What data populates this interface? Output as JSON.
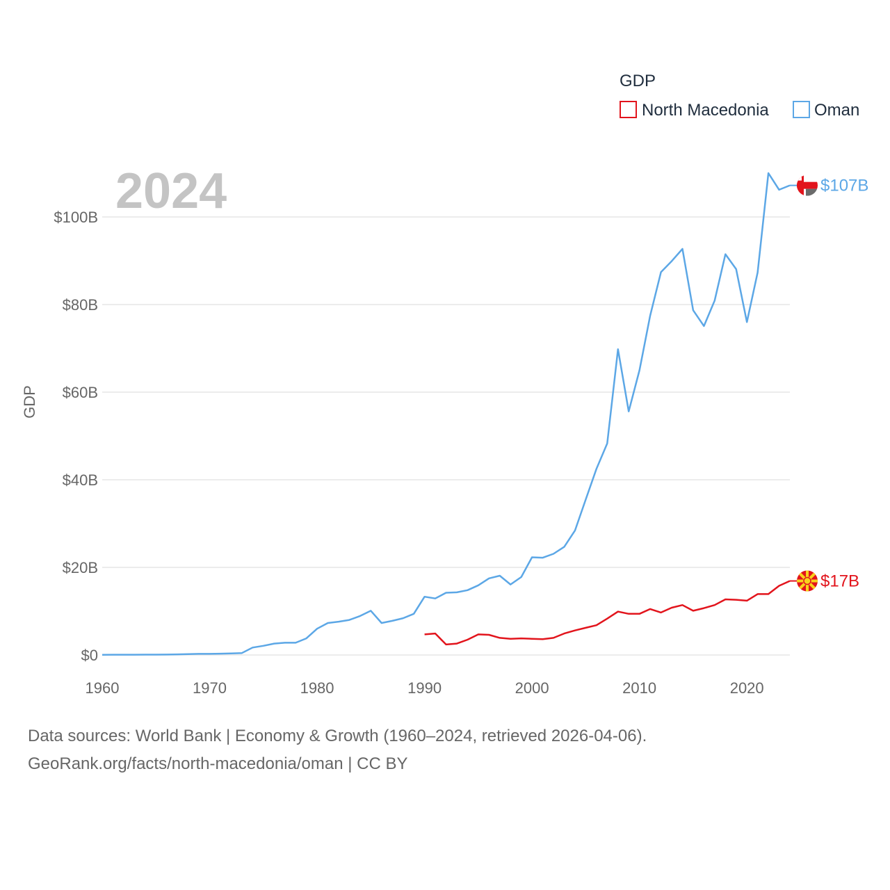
{
  "chart_data": {
    "type": "line",
    "title": "",
    "year_label": "2024",
    "ylabel": "GDP",
    "xlabel": "",
    "xlim": [
      1960,
      2024
    ],
    "ylim": [
      0,
      110
    ],
    "y_unit": "billions USD",
    "x_ticks": [
      1960,
      1970,
      1980,
      1990,
      2000,
      2010,
      2020
    ],
    "x_tick_labels": [
      "1960",
      "1970",
      "1980",
      "1990",
      "2000",
      "2010",
      "2020"
    ],
    "y_ticks": [
      0,
      20,
      40,
      60,
      80,
      100
    ],
    "y_tick_labels": [
      "$0",
      "$20B",
      "$40B",
      "$60B",
      "$80B",
      "$100B"
    ],
    "grid": true,
    "legend": {
      "title": "GDP",
      "position": "top-right",
      "entries": [
        "North Macedonia",
        "Oman"
      ]
    },
    "series": [
      {
        "name": "Oman",
        "color": "#5ca7e6",
        "end_label": "$107B",
        "flag": "oman-flag-icon",
        "points": [
          [
            1960,
            0.05
          ],
          [
            1961,
            0.06
          ],
          [
            1962,
            0.07
          ],
          [
            1963,
            0.07
          ],
          [
            1964,
            0.08
          ],
          [
            1965,
            0.08
          ],
          [
            1966,
            0.09
          ],
          [
            1967,
            0.15
          ],
          [
            1968,
            0.2
          ],
          [
            1969,
            0.25
          ],
          [
            1970,
            0.26
          ],
          [
            1971,
            0.3
          ],
          [
            1972,
            0.35
          ],
          [
            1973,
            0.45
          ],
          [
            1974,
            1.7
          ],
          [
            1975,
            2.1
          ],
          [
            1976,
            2.6
          ],
          [
            1977,
            2.8
          ],
          [
            1978,
            2.8
          ],
          [
            1979,
            3.8
          ],
          [
            1980,
            6.0
          ],
          [
            1981,
            7.3
          ],
          [
            1982,
            7.6
          ],
          [
            1983,
            8.0
          ],
          [
            1984,
            8.9
          ],
          [
            1985,
            10.1
          ],
          [
            1986,
            7.3
          ],
          [
            1987,
            7.8
          ],
          [
            1988,
            8.4
          ],
          [
            1989,
            9.4
          ],
          [
            1990,
            13.3
          ],
          [
            1991,
            12.9
          ],
          [
            1992,
            14.2
          ],
          [
            1993,
            14.3
          ],
          [
            1994,
            14.8
          ],
          [
            1995,
            15.9
          ],
          [
            1996,
            17.5
          ],
          [
            1997,
            18.1
          ],
          [
            1998,
            16.1
          ],
          [
            1999,
            17.8
          ],
          [
            2000,
            22.3
          ],
          [
            2001,
            22.2
          ],
          [
            2002,
            23.1
          ],
          [
            2003,
            24.7
          ],
          [
            2004,
            28.4
          ],
          [
            2005,
            35.5
          ],
          [
            2006,
            42.5
          ],
          [
            2007,
            48.3
          ],
          [
            2008,
            69.8
          ],
          [
            2009,
            55.6
          ],
          [
            2010,
            65.0
          ],
          [
            2011,
            77.5
          ],
          [
            2012,
            87.4
          ],
          [
            2013,
            89.9
          ],
          [
            2014,
            92.7
          ],
          [
            2015,
            78.7
          ],
          [
            2016,
            75.1
          ],
          [
            2017,
            80.9
          ],
          [
            2018,
            91.5
          ],
          [
            2019,
            88.1
          ],
          [
            2020,
            76.0
          ],
          [
            2021,
            87.3
          ],
          [
            2022,
            110.0
          ],
          [
            2023,
            106.2
          ],
          [
            2024,
            107.2
          ]
        ]
      },
      {
        "name": "North Macedonia",
        "color": "#e2141c",
        "end_label": "$17B",
        "flag": "north-macedonia-flag-icon",
        "points": [
          [
            1990,
            4.7
          ],
          [
            1991,
            4.9
          ],
          [
            1992,
            2.4
          ],
          [
            1993,
            2.6
          ],
          [
            1994,
            3.5
          ],
          [
            1995,
            4.7
          ],
          [
            1996,
            4.6
          ],
          [
            1997,
            3.9
          ],
          [
            1998,
            3.7
          ],
          [
            1999,
            3.8
          ],
          [
            2000,
            3.7
          ],
          [
            2001,
            3.6
          ],
          [
            2002,
            3.9
          ],
          [
            2003,
            4.9
          ],
          [
            2004,
            5.6
          ],
          [
            2005,
            6.2
          ],
          [
            2006,
            6.8
          ],
          [
            2007,
            8.3
          ],
          [
            2008,
            9.9
          ],
          [
            2009,
            9.4
          ],
          [
            2010,
            9.4
          ],
          [
            2011,
            10.5
          ],
          [
            2012,
            9.7
          ],
          [
            2013,
            10.8
          ],
          [
            2014,
            11.4
          ],
          [
            2015,
            10.1
          ],
          [
            2016,
            10.7
          ],
          [
            2017,
            11.4
          ],
          [
            2018,
            12.7
          ],
          [
            2019,
            12.6
          ],
          [
            2020,
            12.4
          ],
          [
            2021,
            13.9
          ],
          [
            2022,
            13.9
          ],
          [
            2023,
            15.8
          ],
          [
            2024,
            16.9
          ]
        ]
      }
    ]
  },
  "footer": {
    "line1": "Data sources: World Bank | Economy & Growth (1960–2024, retrieved 2026-04-06).",
    "line2": "GeoRank.org/facts/north-macedonia/oman | CC BY"
  }
}
